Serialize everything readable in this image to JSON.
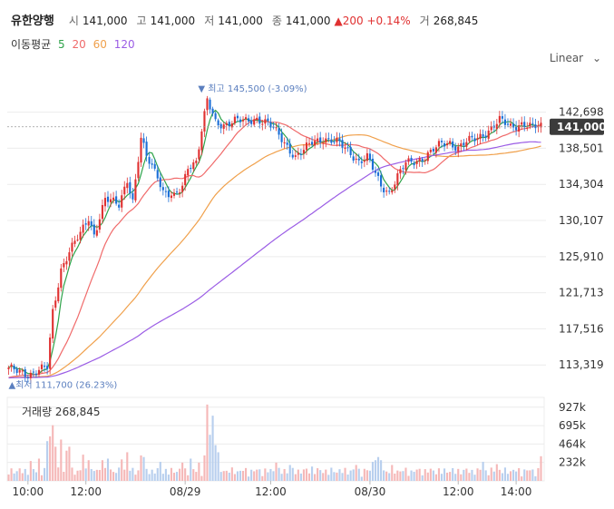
{
  "header": {
    "name": "유한양행",
    "open_label": "시",
    "open": "141,000",
    "high_label": "고",
    "high": "141,000",
    "low_label": "저",
    "low": "141,000",
    "close_label": "종",
    "close": "141,000",
    "change": "▲200 +0.14%",
    "volume_label": "거",
    "volume": "268,845"
  },
  "ma_legend": {
    "label": "이동평균",
    "items": [
      {
        "period": "5",
        "color": "#2fa34a"
      },
      {
        "period": "20",
        "color": "#f06a6a"
      },
      {
        "period": "60",
        "color": "#f0a04b"
      },
      {
        "period": "120",
        "color": "#9b5de5"
      }
    ]
  },
  "scale_label": "Linear",
  "colors": {
    "up": "#e03131",
    "down": "#1c6fd6",
    "grid": "#ececec",
    "vol_up": "#f5b8b8",
    "vol_down": "#b8cfee"
  },
  "chart_data": {
    "type": "line",
    "subtype": "candlestick",
    "y_ticks": [
      142698,
      138501,
      134304,
      130107,
      125910,
      121713,
      117516,
      113319
    ],
    "ylim": [
      110600,
      147300
    ],
    "current_price": 141000,
    "current_label": "141,000",
    "max_label": "최고 145,500 (-3.09%)",
    "min_label": "최저 111,700 (26.23%)",
    "x_labels": [
      "10:00",
      "12:00",
      "08/29",
      "12:00",
      "08/30",
      "12:00",
      "14:00"
    ],
    "volume_title": "거래량 268,845",
    "volume_ticks": [
      "927k",
      "695k",
      "464k",
      "232k"
    ],
    "volume_max": 1050000,
    "anchors": [
      [
        0,
        112800
      ],
      [
        8,
        112300
      ],
      [
        14,
        113000
      ],
      [
        16,
        119500
      ],
      [
        19,
        124500
      ],
      [
        22,
        126500
      ],
      [
        26,
        128500
      ],
      [
        29,
        130500
      ],
      [
        31,
        128500
      ],
      [
        35,
        132500
      ],
      [
        40,
        132000
      ],
      [
        43,
        135000
      ],
      [
        45,
        132300
      ],
      [
        48,
        139500
      ],
      [
        50,
        137500
      ],
      [
        54,
        135500
      ],
      [
        56,
        133500
      ],
      [
        60,
        132700
      ],
      [
        63,
        134000
      ],
      [
        65,
        136500
      ],
      [
        68,
        137000
      ],
      [
        70,
        140500
      ],
      [
        72,
        144000
      ],
      [
        75,
        141500
      ],
      [
        78,
        141300
      ],
      [
        82,
        141700
      ],
      [
        86,
        141600
      ],
      [
        90,
        142000
      ],
      [
        94,
        141400
      ],
      [
        98,
        140000
      ],
      [
        101,
        138800
      ],
      [
        104,
        137500
      ],
      [
        107,
        138200
      ],
      [
        110,
        139200
      ],
      [
        114,
        139700
      ],
      [
        117,
        139400
      ],
      [
        120,
        139000
      ],
      [
        124,
        138000
      ],
      [
        127,
        137000
      ],
      [
        130,
        137400
      ],
      [
        133,
        135500
      ],
      [
        135,
        134200
      ],
      [
        138,
        133400
      ],
      [
        141,
        135200
      ],
      [
        144,
        136700
      ],
      [
        147,
        137000
      ],
      [
        150,
        137400
      ],
      [
        153,
        138000
      ],
      [
        157,
        139000
      ],
      [
        160,
        139200
      ],
      [
        163,
        138600
      ],
      [
        166,
        139200
      ],
      [
        170,
        139700
      ],
      [
        174,
        140600
      ],
      [
        178,
        141700
      ],
      [
        182,
        141000
      ],
      [
        186,
        141400
      ],
      [
        190,
        140900
      ],
      [
        193,
        141000
      ]
    ],
    "volume_spikes": [
      [
        8,
        250000
      ],
      [
        11,
        280000
      ],
      [
        14,
        500000
      ],
      [
        15,
        560000
      ],
      [
        16,
        700000
      ],
      [
        17,
        430000
      ],
      [
        19,
        520000
      ],
      [
        21,
        380000
      ],
      [
        22,
        430000
      ],
      [
        27,
        330000
      ],
      [
        29,
        260000
      ],
      [
        34,
        260000
      ],
      [
        36,
        280000
      ],
      [
        41,
        270000
      ],
      [
        43,
        360000
      ],
      [
        48,
        320000
      ],
      [
        49,
        300000
      ],
      [
        55,
        240000
      ],
      [
        63,
        230000
      ],
      [
        66,
        280000
      ],
      [
        69,
        230000
      ],
      [
        71,
        320000
      ],
      [
        72,
        960000
      ],
      [
        73,
        580000
      ],
      [
        74,
        820000
      ],
      [
        75,
        450000
      ],
      [
        76,
        360000
      ],
      [
        97,
        230000
      ],
      [
        102,
        200000
      ],
      [
        110,
        180000
      ],
      [
        126,
        200000
      ],
      [
        132,
        240000
      ],
      [
        133,
        260000
      ],
      [
        134,
        300000
      ],
      [
        135,
        260000
      ],
      [
        139,
        200000
      ],
      [
        172,
        240000
      ],
      [
        177,
        210000
      ],
      [
        193,
        310000
      ]
    ]
  }
}
